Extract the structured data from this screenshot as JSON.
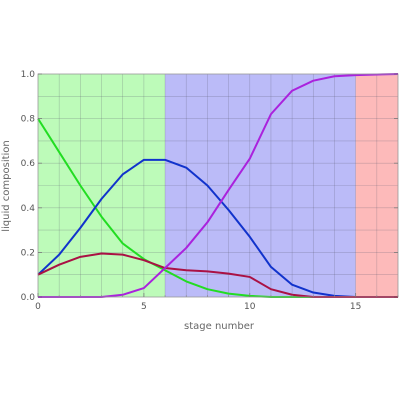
{
  "chart_data": {
    "type": "line",
    "title": "",
    "xlabel": "stage number",
    "ylabel": "liquid composition",
    "xlim": [
      0,
      17
    ],
    "ylim": [
      0,
      1.0
    ],
    "x_ticks": [
      0,
      5,
      10,
      15
    ],
    "y_ticks": [
      0.0,
      0.2,
      0.4,
      0.6,
      0.8,
      1.0
    ],
    "x_tick_labels": [
      "0",
      "5",
      "10",
      "15"
    ],
    "y_tick_labels": [
      "0.0",
      "0.2",
      "0.4",
      "0.6",
      "0.8",
      "1.0"
    ],
    "grid": true,
    "regions": [
      {
        "x_start": 0,
        "x_end": 6,
        "color": "#bdfbb9"
      },
      {
        "x_start": 6,
        "x_end": 15,
        "color": "#bbbbf8"
      },
      {
        "x_start": 15,
        "x_end": 17,
        "color": "#fdbaba"
      }
    ],
    "x": [
      0,
      1,
      2,
      3,
      4,
      5,
      6,
      7,
      8,
      9,
      10,
      11,
      12,
      13,
      14,
      15,
      16,
      17
    ],
    "series": [
      {
        "color": "#22dd22",
        "values": [
          0.8,
          0.65,
          0.5,
          0.36,
          0.24,
          0.17,
          0.12,
          0.07,
          0.035,
          0.015,
          0.005,
          0.0,
          0.0,
          0.0,
          0.0,
          0.0,
          0.0,
          0.0
        ]
      },
      {
        "color": "#1133cc",
        "values": [
          0.1,
          0.19,
          0.31,
          0.44,
          0.55,
          0.615,
          0.615,
          0.58,
          0.5,
          0.39,
          0.27,
          0.135,
          0.055,
          0.02,
          0.005,
          0.0,
          0.0,
          0.0
        ]
      },
      {
        "color": "#aa1144",
        "values": [
          0.1,
          0.145,
          0.18,
          0.195,
          0.19,
          0.165,
          0.13,
          0.12,
          0.115,
          0.105,
          0.09,
          0.035,
          0.01,
          0.0,
          0.0,
          0.0,
          0.0,
          0.0
        ]
      },
      {
        "color": "#aa22dd",
        "values": [
          0.0,
          0.0,
          0.0,
          0.0,
          0.01,
          0.04,
          0.13,
          0.22,
          0.335,
          0.48,
          0.62,
          0.82,
          0.925,
          0.97,
          0.99,
          0.995,
          0.998,
          1.0
        ]
      }
    ]
  }
}
